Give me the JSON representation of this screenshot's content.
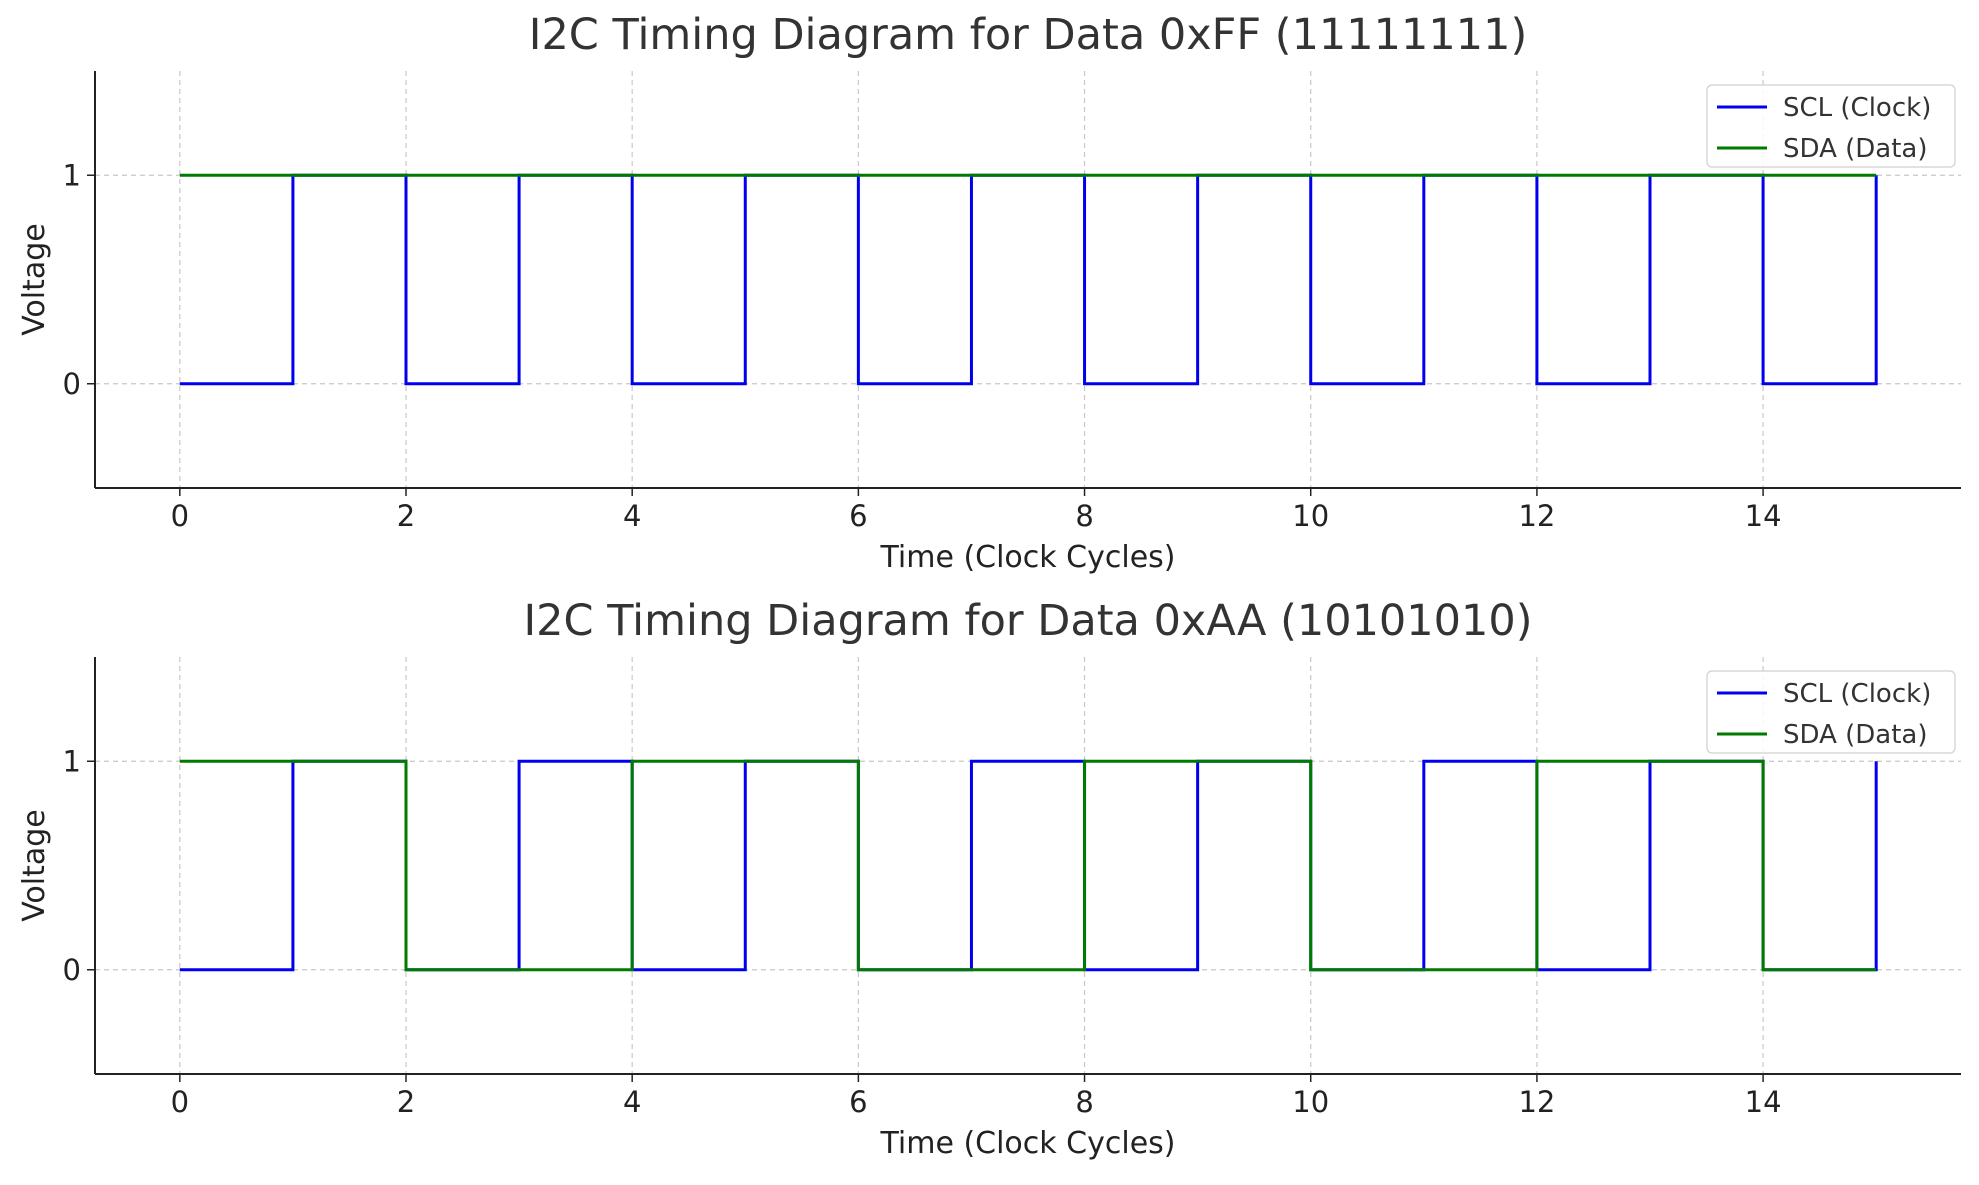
{
  "chart_data": [
    {
      "type": "line",
      "step": "post",
      "title": "I2C Timing Diagram for Data 0xFF (11111111)",
      "xlabel": "Time (Clock Cycles)",
      "ylabel": "Voltage",
      "xlim": [
        -0.75,
        15.75
      ],
      "ylim": [
        -0.5,
        1.5
      ],
      "xticks": [
        0,
        2,
        4,
        6,
        8,
        10,
        12,
        14
      ],
      "yticks": [
        0,
        1
      ],
      "xtick_labels": [
        "0",
        "2",
        "4",
        "6",
        "8",
        "10",
        "12",
        "14"
      ],
      "ytick_labels": [
        "0",
        "1"
      ],
      "grid": true,
      "legend_position": "top-right",
      "x": [
        0,
        1,
        2,
        3,
        4,
        5,
        6,
        7,
        8,
        9,
        10,
        11,
        12,
        13,
        14,
        15
      ],
      "series": [
        {
          "name": "SCL (Clock)",
          "color": "#0000ee",
          "values": [
            0,
            1,
            0,
            1,
            0,
            1,
            0,
            1,
            0,
            1,
            0,
            1,
            0,
            1,
            0,
            1
          ]
        },
        {
          "name": "SDA (Data)",
          "color": "#007a00",
          "values": [
            1,
            1,
            1,
            1,
            1,
            1,
            1,
            1,
            1,
            1,
            1,
            1,
            1,
            1,
            1,
            1
          ]
        }
      ]
    },
    {
      "type": "line",
      "step": "post",
      "title": "I2C Timing Diagram for Data 0xAA (10101010)",
      "xlabel": "Time (Clock Cycles)",
      "ylabel": "Voltage",
      "xlim": [
        -0.75,
        15.75
      ],
      "ylim": [
        -0.5,
        1.5
      ],
      "xticks": [
        0,
        2,
        4,
        6,
        8,
        10,
        12,
        14
      ],
      "yticks": [
        0,
        1
      ],
      "xtick_labels": [
        "0",
        "2",
        "4",
        "6",
        "8",
        "10",
        "12",
        "14"
      ],
      "ytick_labels": [
        "0",
        "1"
      ],
      "grid": true,
      "legend_position": "top-right",
      "x": [
        0,
        1,
        2,
        3,
        4,
        5,
        6,
        7,
        8,
        9,
        10,
        11,
        12,
        13,
        14,
        15
      ],
      "series": [
        {
          "name": "SCL (Clock)",
          "color": "#0000ee",
          "values": [
            0,
            1,
            0,
            1,
            0,
            1,
            0,
            1,
            0,
            1,
            0,
            1,
            0,
            1,
            0,
            1
          ]
        },
        {
          "name": "SDA (Data)",
          "color": "#007a00",
          "values": [
            1,
            1,
            0,
            0,
            1,
            1,
            0,
            0,
            1,
            1,
            0,
            0,
            1,
            1,
            0,
            0
          ]
        }
      ]
    }
  ]
}
